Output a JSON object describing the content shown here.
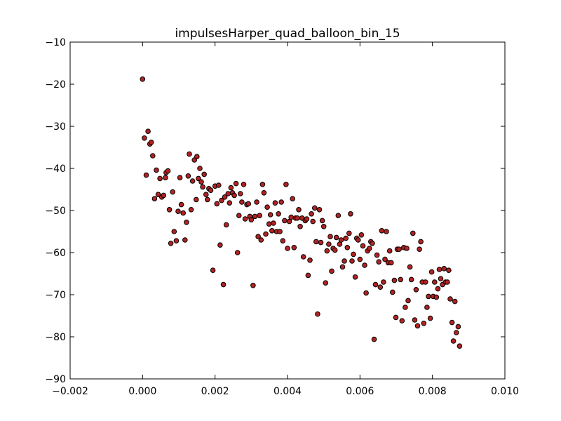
{
  "chart_data": {
    "type": "scatter",
    "title": "impulsesHarper_quad_balloon_bin_15",
    "xlabel": "",
    "ylabel": "",
    "xlim": [
      -0.002,
      0.01
    ],
    "ylim": [
      -90,
      -10
    ],
    "grid": false,
    "marker_color": "#b22222",
    "marker_edge_color": "#000000",
    "x_ticks": [
      {
        "value": -0.002,
        "label": "−0.002"
      },
      {
        "value": 0.0,
        "label": "0.000"
      },
      {
        "value": 0.002,
        "label": "0.002"
      },
      {
        "value": 0.004,
        "label": "0.004"
      },
      {
        "value": 0.006,
        "label": "0.006"
      },
      {
        "value": 0.008,
        "label": "0.008"
      },
      {
        "value": 0.01,
        "label": "0.010"
      }
    ],
    "y_ticks": [
      {
        "value": -10,
        "label": "−10"
      },
      {
        "value": -20,
        "label": "−20"
      },
      {
        "value": -30,
        "label": "−30"
      },
      {
        "value": -40,
        "label": "−40"
      },
      {
        "value": -50,
        "label": "−50"
      },
      {
        "value": -60,
        "label": "−60"
      },
      {
        "value": -70,
        "label": "−70"
      },
      {
        "value": -80,
        "label": "−80"
      },
      {
        "value": -90,
        "label": "−90"
      }
    ],
    "points": [
      [
        0.0,
        -18.8
      ],
      [
        5e-05,
        -32.8
      ],
      [
        0.0001,
        -41.6
      ],
      [
        0.00015,
        -31.2
      ],
      [
        0.0002,
        -34.2
      ],
      [
        0.00024,
        -33.8
      ],
      [
        0.00028,
        -37.0
      ],
      [
        0.00033,
        -47.2
      ],
      [
        0.00038,
        -40.4
      ],
      [
        0.00043,
        -46.2
      ],
      [
        0.00048,
        -42.4
      ],
      [
        0.00053,
        -46.8
      ],
      [
        0.00058,
        -46.4
      ],
      [
        0.00063,
        -42.2
      ],
      [
        0.00065,
        -41.0
      ],
      [
        0.0007,
        -40.6
      ],
      [
        0.00074,
        -49.8
      ],
      [
        0.00078,
        -57.8
      ],
      [
        0.00083,
        -45.6
      ],
      [
        0.00087,
        -55.0
      ],
      [
        0.00093,
        -57.2
      ],
      [
        0.00098,
        -50.2
      ],
      [
        0.00103,
        -42.2
      ],
      [
        0.00107,
        -48.6
      ],
      [
        0.00112,
        -50.6
      ],
      [
        0.00117,
        -57.0
      ],
      [
        0.00121,
        -52.8
      ],
      [
        0.00126,
        -41.8
      ],
      [
        0.00129,
        -36.6
      ],
      [
        0.00134,
        -49.8
      ],
      [
        0.00138,
        -43.0
      ],
      [
        0.00143,
        -38.0
      ],
      [
        0.00148,
        -47.4
      ],
      [
        0.0015,
        -37.2
      ],
      [
        0.00154,
        -42.4
      ],
      [
        0.00158,
        -40.0
      ],
      [
        0.00162,
        -43.2
      ],
      [
        0.00166,
        -44.4
      ],
      [
        0.0017,
        -41.4
      ],
      [
        0.00175,
        -46.2
      ],
      [
        0.00179,
        -47.4
      ],
      [
        0.00183,
        -44.8
      ],
      [
        0.00188,
        -45.2
      ],
      [
        0.00194,
        -64.2
      ],
      [
        0.002,
        -44.2
      ],
      [
        0.00205,
        -48.4
      ],
      [
        0.0021,
        -44.0
      ],
      [
        0.00214,
        -58.2
      ],
      [
        0.00218,
        -47.6
      ],
      [
        0.00223,
        -67.6
      ],
      [
        0.00227,
        -46.8
      ],
      [
        0.00231,
        -53.4
      ],
      [
        0.00236,
        -46.0
      ],
      [
        0.0024,
        -48.2
      ],
      [
        0.00244,
        -44.6
      ],
      [
        0.00248,
        -45.8
      ],
      [
        0.00253,
        -46.4
      ],
      [
        0.00258,
        -43.6
      ],
      [
        0.00262,
        -60.0
      ],
      [
        0.00266,
        -51.2
      ],
      [
        0.0027,
        -46.0
      ],
      [
        0.00274,
        -48.0
      ],
      [
        0.00279,
        -43.8
      ],
      [
        0.00283,
        -52.0
      ],
      [
        0.00288,
        -48.6
      ],
      [
        0.00292,
        -48.4
      ],
      [
        0.00296,
        -51.4
      ],
      [
        0.003,
        -52.2
      ],
      [
        0.00305,
        -67.8
      ],
      [
        0.0031,
        -51.4
      ],
      [
        0.00315,
        -48.0
      ],
      [
        0.00319,
        -56.2
      ],
      [
        0.00323,
        -51.2
      ],
      [
        0.00327,
        -57.0
      ],
      [
        0.00331,
        -43.8
      ],
      [
        0.00335,
        -45.8
      ],
      [
        0.0034,
        -55.6
      ],
      [
        0.00344,
        -49.2
      ],
      [
        0.00349,
        -53.2
      ],
      [
        0.00353,
        -51.0
      ],
      [
        0.00357,
        -54.8
      ],
      [
        0.00361,
        -53.0
      ],
      [
        0.00366,
        -48.2
      ],
      [
        0.0037,
        -55.0
      ],
      [
        0.00375,
        -50.8
      ],
      [
        0.00379,
        -55.0
      ],
      [
        0.00383,
        -48.0
      ],
      [
        0.00387,
        -57.2
      ],
      [
        0.00392,
        -52.4
      ],
      [
        0.00396,
        -43.8
      ],
      [
        0.004,
        -59.0
      ],
      [
        0.00405,
        -52.6
      ],
      [
        0.0041,
        -51.6
      ],
      [
        0.00414,
        -47.2
      ],
      [
        0.00418,
        -58.8
      ],
      [
        0.00422,
        -51.8
      ],
      [
        0.00427,
        -51.8
      ],
      [
        0.00431,
        -49.8
      ],
      [
        0.00435,
        -53.8
      ],
      [
        0.0044,
        -51.8
      ],
      [
        0.00444,
        -61.0
      ],
      [
        0.00449,
        -52.4
      ],
      [
        0.00453,
        -52.0
      ],
      [
        0.00457,
        -65.4
      ],
      [
        0.00462,
        -61.8
      ],
      [
        0.00466,
        -50.8
      ],
      [
        0.0047,
        -52.6
      ],
      [
        0.00475,
        -49.4
      ],
      [
        0.00479,
        -57.4
      ],
      [
        0.00483,
        -74.6
      ],
      [
        0.00488,
        -49.8
      ],
      [
        0.00492,
        -57.6
      ],
      [
        0.00496,
        -52.4
      ],
      [
        0.005,
        -53.8
      ],
      [
        0.00505,
        -67.2
      ],
      [
        0.00509,
        -59.6
      ],
      [
        0.00514,
        -58.0
      ],
      [
        0.00518,
        -56.2
      ],
      [
        0.00522,
        -64.4
      ],
      [
        0.00526,
        -59.0
      ],
      [
        0.00531,
        -59.4
      ],
      [
        0.00535,
        -56.4
      ],
      [
        0.0054,
        -51.2
      ],
      [
        0.00544,
        -58.0
      ],
      [
        0.00548,
        -57.0
      ],
      [
        0.00552,
        -63.4
      ],
      [
        0.00557,
        -62.0
      ],
      [
        0.00561,
        -56.6
      ],
      [
        0.00565,
        -58.8
      ],
      [
        0.0057,
        -55.4
      ],
      [
        0.00574,
        -50.8
      ],
      [
        0.00578,
        -62.0
      ],
      [
        0.00582,
        -60.4
      ],
      [
        0.00587,
        -65.8
      ],
      [
        0.00591,
        -56.6
      ],
      [
        0.00595,
        -57.0
      ],
      [
        0.006,
        -61.6
      ],
      [
        0.00604,
        -55.8
      ],
      [
        0.00608,
        -58.4
      ],
      [
        0.00613,
        -63.0
      ],
      [
        0.00617,
        -69.6
      ],
      [
        0.00621,
        -59.6
      ],
      [
        0.00626,
        -59.0
      ],
      [
        0.0063,
        -57.4
      ],
      [
        0.00634,
        -57.8
      ],
      [
        0.00639,
        -80.6
      ],
      [
        0.00643,
        -67.6
      ],
      [
        0.00647,
        -60.6
      ],
      [
        0.00652,
        -62.2
      ],
      [
        0.00656,
        -68.2
      ],
      [
        0.0066,
        -54.8
      ],
      [
        0.00665,
        -67.0
      ],
      [
        0.00669,
        -61.6
      ],
      [
        0.00673,
        -55.0
      ],
      [
        0.00678,
        -62.4
      ],
      [
        0.00682,
        -59.6
      ],
      [
        0.00686,
        -62.4
      ],
      [
        0.0069,
        -69.4
      ],
      [
        0.00695,
        -66.6
      ],
      [
        0.00699,
        -75.4
      ],
      [
        0.00703,
        -59.2
      ],
      [
        0.00708,
        -59.2
      ],
      [
        0.00712,
        -66.4
      ],
      [
        0.00716,
        -76.2
      ],
      [
        0.00721,
        -58.8
      ],
      [
        0.00725,
        -73.0
      ],
      [
        0.00729,
        -59.0
      ],
      [
        0.00733,
        -71.4
      ],
      [
        0.00738,
        -63.4
      ],
      [
        0.00742,
        -66.4
      ],
      [
        0.00746,
        -55.4
      ],
      [
        0.00751,
        -76.0
      ],
      [
        0.00755,
        -68.8
      ],
      [
        0.00759,
        -77.4
      ],
      [
        0.00764,
        -59.2
      ],
      [
        0.00768,
        -57.4
      ],
      [
        0.00772,
        -67.0
      ],
      [
        0.00776,
        -76.8
      ],
      [
        0.00781,
        -67.0
      ],
      [
        0.00785,
        -73.0
      ],
      [
        0.00789,
        -70.4
      ],
      [
        0.00794,
        -75.6
      ],
      [
        0.00798,
        -64.6
      ],
      [
        0.00802,
        -70.4
      ],
      [
        0.00806,
        -67.0
      ],
      [
        0.00811,
        -70.6
      ],
      [
        0.00815,
        -68.6
      ],
      [
        0.00819,
        -64.0
      ],
      [
        0.00823,
        -66.2
      ],
      [
        0.00828,
        -67.6
      ],
      [
        0.00832,
        -63.8
      ],
      [
        0.00836,
        -67.0
      ],
      [
        0.00841,
        -67.0
      ],
      [
        0.00845,
        -64.2
      ],
      [
        0.00849,
        -71.0
      ],
      [
        0.00854,
        -76.6
      ],
      [
        0.00858,
        -81.0
      ],
      [
        0.00862,
        -71.6
      ],
      [
        0.00866,
        -79.0
      ],
      [
        0.00871,
        -77.6
      ],
      [
        0.00875,
        -82.2
      ]
    ]
  }
}
